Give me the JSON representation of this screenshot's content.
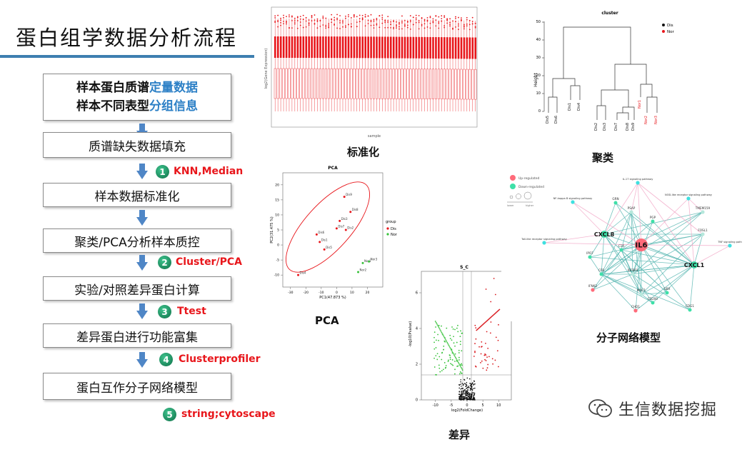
{
  "title": "蛋白组学数据分析流程",
  "flow": {
    "box0_line1_plain": "样本蛋白质谱",
    "box0_line1_hl": "定量数据",
    "box0_line2_plain": "样本不同表型",
    "box0_line2_hl": "分组信息",
    "steps": [
      "质谱缺失数据填充",
      "样本数据标准化",
      "聚类/PCA分析样本质控",
      "实验/对照差异蛋白计算",
      "差异蛋白进行功能富集",
      "蛋白互作分子网络模型"
    ],
    "tools": [
      {
        "num": "1",
        "label": "KNN,Median"
      },
      {
        "num": "2",
        "label": "Cluster/PCA"
      },
      {
        "num": "3",
        "label": "Ttest"
      },
      {
        "num": "4",
        "label": "Clusterprofiler"
      },
      {
        "num": "5",
        "label": "string;cytoscape"
      }
    ]
  },
  "panels": {
    "boxplot": {
      "caption": "标准化",
      "ylabel": "log2(Gene Expression)",
      "xlabel": "sample"
    },
    "cluster": {
      "caption": "聚类",
      "title": "cluster",
      "ylabel": "Height",
      "yticks": [
        "0",
        "10",
        "20",
        "30",
        "40",
        "50"
      ],
      "legend": [
        {
          "label": "Dis",
          "color": "#111111"
        },
        {
          "label": "Nor",
          "color": "#e8161b"
        }
      ],
      "leaves": [
        {
          "label": "Dis5",
          "group": "Dis"
        },
        {
          "label": "Dis6",
          "group": "Dis"
        },
        {
          "label": "Dis1",
          "group": "Dis"
        },
        {
          "label": "Dis4",
          "group": "Dis"
        },
        {
          "label": "Dis2",
          "group": "Dis"
        },
        {
          "label": "Dis3",
          "group": "Dis"
        },
        {
          "label": "Dis7",
          "group": "Dis"
        },
        {
          "label": "Dis8",
          "group": "Dis"
        },
        {
          "label": "Dis9",
          "group": "Dis"
        },
        {
          "label": "Nor1",
          "group": "Nor"
        },
        {
          "label": "Nor2",
          "group": "Nor"
        },
        {
          "label": "Nor3",
          "group": "Nor"
        }
      ]
    },
    "pca": {
      "caption": "PCA",
      "title": "PCA",
      "xlabel": "PC1(47.873 %)",
      "ylabel": "PC2(31.475 %)",
      "xticks": [
        "-30",
        "-20",
        "-10",
        "0",
        "10",
        "20"
      ],
      "yticks": [
        "-10",
        "-5",
        "0",
        "5",
        "10",
        "15",
        "20"
      ],
      "legend_title": "group",
      "legend": [
        {
          "label": "Dis",
          "color": "#e8161b"
        },
        {
          "label": "Nor",
          "color": "#37c23a"
        }
      ],
      "points": [
        {
          "label": "Dis9",
          "x": 5,
          "y": 16,
          "group": "Dis"
        },
        {
          "label": "Dis8",
          "x": 9,
          "y": 11,
          "group": "Dis"
        },
        {
          "label": "Dis3",
          "x": 2,
          "y": 8,
          "group": "Dis"
        },
        {
          "label": "Dis7",
          "x": 0,
          "y": 5.5,
          "group": "Dis"
        },
        {
          "label": "Dis2",
          "x": 6,
          "y": 5,
          "group": "Dis"
        },
        {
          "label": "Dis6",
          "x": -13,
          "y": 3.5,
          "group": "Dis"
        },
        {
          "label": "Dis1",
          "x": -11,
          "y": 1,
          "group": "Dis"
        },
        {
          "label": "Dis5",
          "x": -8,
          "y": -1.5,
          "group": "Dis"
        },
        {
          "label": "Dis4",
          "x": -25,
          "y": -10,
          "group": "Dis"
        },
        {
          "label": "Nor1",
          "x": 17,
          "y": -6,
          "group": "Nor"
        },
        {
          "label": "Nor3",
          "x": 21,
          "y": -5.5,
          "group": "Nor"
        },
        {
          "label": "Nor2",
          "x": 14,
          "y": -9,
          "group": "Nor"
        }
      ]
    },
    "volcano": {
      "caption": "差异",
      "title": "S_C",
      "xlabel": "log2(FoldChange)",
      "ylabel": "-log10(Pvalue)",
      "xticks": [
        "-10",
        "-5",
        "0",
        "5",
        "10"
      ],
      "yticks": [
        "0",
        "2",
        "4",
        "6"
      ]
    },
    "network": {
      "caption": "分子网络模型",
      "legend_up": "Up-regulated",
      "legend_down": "Down-regulated",
      "legend_low": "lower",
      "legend_high": "higher",
      "nodes": [
        {
          "label": "IL-17 signaling pathway",
          "kind": "pathway"
        },
        {
          "label": "NF-kappa B signaling pathway",
          "kind": "pathway"
        },
        {
          "label": "NOD-like receptor signaling pathway",
          "kind": "pathway"
        },
        {
          "label": "Toll-like receptor signaling pathway",
          "kind": "pathway"
        },
        {
          "label": "TNF signaling path",
          "kind": "pathway"
        },
        {
          "label": "GRN",
          "kind": "down"
        },
        {
          "label": "PSAP",
          "kind": "gene"
        },
        {
          "label": "TMEM159",
          "kind": "gene"
        },
        {
          "label": "PGP",
          "kind": "down"
        },
        {
          "label": "CXCL8",
          "kind": "hub"
        },
        {
          "label": "IL6",
          "kind": "up"
        },
        {
          "label": "FOSL1",
          "kind": "gene"
        },
        {
          "label": "C1R",
          "kind": "down"
        },
        {
          "label": "CXCL1",
          "kind": "hub"
        },
        {
          "label": "IPO7",
          "kind": "down"
        },
        {
          "label": "CFB",
          "kind": "down"
        },
        {
          "label": "IGFBP3",
          "kind": "gene"
        },
        {
          "label": "MUC1",
          "kind": "gene"
        },
        {
          "label": "IFNK2",
          "kind": "up"
        },
        {
          "label": "CD200",
          "kind": "down"
        },
        {
          "label": "GBX",
          "kind": "down"
        },
        {
          "label": "CHD1",
          "kind": "up"
        },
        {
          "label": "CDG1",
          "kind": "down"
        }
      ]
    }
  },
  "watermark": "生信数据挖掘",
  "colors": {
    "accent": "#2d80c6",
    "tool_red": "#e8161b",
    "num_green": "#0d6e46",
    "arrow": "#4f86c6"
  }
}
